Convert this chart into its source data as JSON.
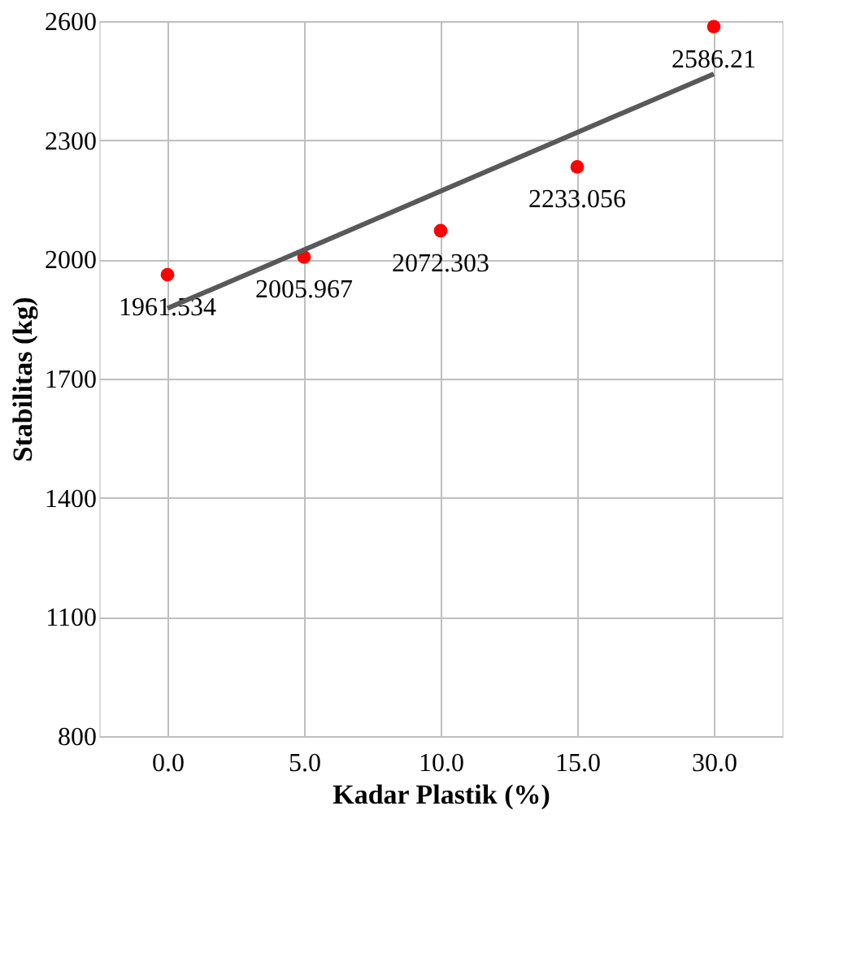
{
  "chart_data": {
    "type": "scatter",
    "xlabel": "Kadar Plastik (%)",
    "ylabel": "Stabilitas  (kg)",
    "categories": [
      "0.0",
      "5.0",
      "10.0",
      "15.0",
      "30.0"
    ],
    "series": [
      {
        "color": "#ff0000",
        "marker": "circle",
        "values": [
          1961.534,
          2005.967,
          2072.303,
          2233.056,
          2586.21
        ],
        "value_labels": [
          "1961.534",
          "2005.967",
          "2072.303",
          "2233.056",
          "2586.21"
        ]
      },
      {
        "type": "line",
        "color": "#595959",
        "x": [
          "0.0",
          "5.0",
          "10.0",
          "15.0",
          "30.0"
        ],
        "values": [
          1877,
          2024,
          2172,
          2320,
          2467
        ]
      }
    ],
    "ylim": [
      800,
      2600
    ],
    "yticks": [
      800,
      1100,
      1400,
      1700,
      2000,
      2300,
      2600
    ],
    "grid": true
  }
}
